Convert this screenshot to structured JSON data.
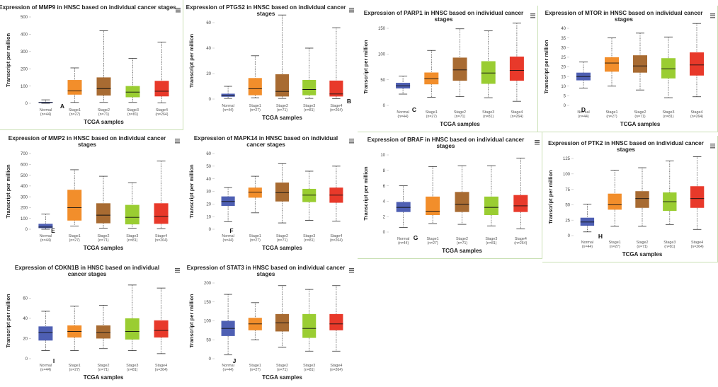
{
  "common": {
    "xlabel": "TCGA samples",
    "ylabel": "Transcript per million",
    "categories": [
      "Normal",
      "Stage1",
      "Stage2",
      "Stage3",
      "Stage4"
    ],
    "counts": [
      "(n=44)",
      "(n=27)",
      "(n=71)",
      "(n=81)",
      "(n=264)"
    ]
  },
  "colors": [
    "#4e5fb3",
    "#f28e2b",
    "#a86b32",
    "#9acd32",
    "#e8392a"
  ],
  "chart_data": [
    {
      "type": "box",
      "letter": "A",
      "title": [
        "Expression of MMP9 in HNSC based on individual cancer stages"
      ],
      "ylim": [
        0,
        500
      ],
      "yticks": [
        0,
        100,
        200,
        300,
        400,
        500
      ],
      "boxes": [
        {
          "min": 0,
          "q1": 2,
          "median": 5,
          "q3": 8,
          "max": 20
        },
        {
          "min": 5,
          "q1": 50,
          "median": 72,
          "q3": 135,
          "max": 205
        },
        {
          "min": 5,
          "q1": 45,
          "median": 85,
          "q3": 150,
          "max": 420
        },
        {
          "min": 5,
          "q1": 35,
          "median": 65,
          "q3": 100,
          "max": 260
        },
        {
          "min": 3,
          "q1": 40,
          "median": 70,
          "q3": 130,
          "max": 355
        }
      ]
    },
    {
      "type": "box",
      "letter": "B",
      "title": [
        "Expression of PTGS2 in HNSC based on individual cancer",
        "stages"
      ],
      "ylim": [
        0,
        60
      ],
      "yticks": [
        0,
        20,
        40,
        60
      ],
      "boxes": [
        {
          "min": 0.5,
          "q1": 1.8,
          "median": 2.8,
          "q3": 4.2,
          "max": 10
        },
        {
          "min": 1,
          "q1": 3,
          "median": 8,
          "q3": 16.5,
          "max": 34
        },
        {
          "min": 0.5,
          "q1": 2,
          "median": 6,
          "q3": 19.5,
          "max": 66
        },
        {
          "min": 0.5,
          "q1": 3,
          "median": 7.5,
          "q3": 15,
          "max": 40
        },
        {
          "min": 0.3,
          "q1": 2,
          "median": 4,
          "q3": 14.5,
          "max": 56
        }
      ]
    },
    {
      "type": "box",
      "letter": "C",
      "title": [
        "Expression of PARP1 in HNSC based on individual cancer",
        "stages"
      ],
      "ylim": [
        0,
        150
      ],
      "yticks": [
        0,
        50,
        100,
        150
      ],
      "boxes": [
        {
          "min": 22,
          "q1": 33,
          "median": 38,
          "q3": 44,
          "max": 57
        },
        {
          "min": 16,
          "q1": 41,
          "median": 52,
          "q3": 64,
          "max": 107
        },
        {
          "min": 17,
          "q1": 48,
          "median": 69,
          "q3": 93,
          "max": 149
        },
        {
          "min": 15,
          "q1": 42,
          "median": 63,
          "q3": 86,
          "max": 145
        },
        {
          "min": 8,
          "q1": 48,
          "median": 68,
          "q3": 95,
          "max": 160
        }
      ]
    },
    {
      "type": "box",
      "letter": "D",
      "title": [
        "Expression of MTOR in HNSC based on individual cancer",
        "stages"
      ],
      "ylim": [
        0,
        40
      ],
      "yticks": [
        0,
        5,
        10,
        15,
        20,
        25,
        30,
        35,
        40
      ],
      "boxes": [
        {
          "min": 9,
          "q1": 13,
          "median": 15,
          "q3": 17,
          "max": 22.5
        },
        {
          "min": 10,
          "q1": 17.5,
          "median": 22,
          "q3": 25,
          "max": 35
        },
        {
          "min": 8,
          "q1": 17,
          "median": 20.5,
          "q3": 26,
          "max": 37.5
        },
        {
          "min": 4,
          "q1": 14,
          "median": 19,
          "q3": 24.5,
          "max": 35.5
        },
        {
          "min": 4.5,
          "q1": 15.5,
          "median": 21,
          "q3": 27.5,
          "max": 42.5
        }
      ]
    },
    {
      "type": "box",
      "letter": "E",
      "title": [
        "Expression of MMP2 in HNSC based on individual cancer",
        "stages"
      ],
      "ylim": [
        0,
        700
      ],
      "yticks": [
        0,
        100,
        200,
        300,
        400,
        500,
        600,
        700
      ],
      "boxes": [
        {
          "min": 0,
          "q1": 10,
          "median": 20,
          "q3": 50,
          "max": 140
        },
        {
          "min": 30,
          "q1": 80,
          "median": 200,
          "q3": 365,
          "max": 550
        },
        {
          "min": 10,
          "q1": 55,
          "median": 130,
          "q3": 240,
          "max": 490
        },
        {
          "min": 10,
          "q1": 45,
          "median": 110,
          "q3": 225,
          "max": 430
        },
        {
          "min": 5,
          "q1": 50,
          "median": 120,
          "q3": 240,
          "max": 630
        }
      ]
    },
    {
      "type": "box",
      "letter": "F",
      "title": [
        "Expression of MAPK14 in HNSC based on individual",
        "cancer stages"
      ],
      "ylim": [
        0,
        60
      ],
      "yticks": [
        0,
        10,
        20,
        30,
        40,
        50,
        60
      ],
      "boxes": [
        {
          "min": 6,
          "q1": 18.5,
          "median": 22,
          "q3": 26,
          "max": 33
        },
        {
          "min": 13,
          "q1": 25,
          "median": 29.5,
          "q3": 33,
          "max": 42
        },
        {
          "min": 5,
          "q1": 22,
          "median": 29,
          "q3": 37,
          "max": 52
        },
        {
          "min": 7,
          "q1": 21.5,
          "median": 27,
          "q3": 32,
          "max": 46
        },
        {
          "min": 6.5,
          "q1": 21,
          "median": 27,
          "q3": 33,
          "max": 50
        }
      ]
    },
    {
      "type": "box",
      "letter": "G",
      "title": [
        "Expression of BRAF in HNSC based on individual cancer",
        "stages"
      ],
      "ylim": [
        0,
        10
      ],
      "yticks": [
        0,
        2,
        4,
        6,
        8,
        10
      ],
      "boxes": [
        {
          "min": 0.6,
          "q1": 2.6,
          "median": 3.2,
          "q3": 3.9,
          "max": 6
        },
        {
          "min": 1.1,
          "q1": 2.2,
          "median": 2.7,
          "q3": 4.6,
          "max": 8.5
        },
        {
          "min": 1,
          "q1": 2.6,
          "median": 3.6,
          "q3": 5.2,
          "max": 8.6
        },
        {
          "min": 0.8,
          "q1": 2.2,
          "median": 3.2,
          "q3": 4.6,
          "max": 8.6
        },
        {
          "min": 0.4,
          "q1": 2.6,
          "median": 3.4,
          "q3": 4.8,
          "max": 9.6
        }
      ]
    },
    {
      "type": "box",
      "letter": "H",
      "title": [
        "Expression of PTK2 in HNSC based on individual cancer",
        "stages"
      ],
      "ylim": [
        0,
        125
      ],
      "yticks": [
        0,
        25,
        50,
        75,
        100,
        125
      ],
      "boxes": [
        {
          "min": 6,
          "q1": 16,
          "median": 22,
          "q3": 29,
          "max": 51
        },
        {
          "min": 15,
          "q1": 42,
          "median": 50,
          "q3": 68,
          "max": 106
        },
        {
          "min": 15,
          "q1": 45,
          "median": 60,
          "q3": 72,
          "max": 110
        },
        {
          "min": 18,
          "q1": 40,
          "median": 55,
          "q3": 70,
          "max": 121
        },
        {
          "min": 10,
          "q1": 45,
          "median": 60,
          "q3": 80,
          "max": 128
        }
      ]
    },
    {
      "type": "box",
      "letter": "I",
      "title": [
        "Expression of CDKN1B in HNSC based on individual",
        "cancer stages"
      ],
      "ylim": [
        0,
        75
      ],
      "yticks": [
        0,
        20,
        40,
        60
      ],
      "boxes": [
        {
          "min": 8,
          "q1": 18,
          "median": 26,
          "q3": 32,
          "max": 47
        },
        {
          "min": 8,
          "q1": 21,
          "median": 27,
          "q3": 33,
          "max": 52
        },
        {
          "min": 10,
          "q1": 20,
          "median": 26,
          "q3": 33,
          "max": 53
        },
        {
          "min": 8,
          "q1": 19,
          "median": 27,
          "q3": 40,
          "max": 73
        },
        {
          "min": 5,
          "q1": 21,
          "median": 28,
          "q3": 38,
          "max": 70
        }
      ]
    },
    {
      "type": "box",
      "letter": "J",
      "title": [
        "Expression of STAT3 in HNSC based on individual cancer",
        "stages"
      ],
      "ylim": [
        0,
        200
      ],
      "yticks": [
        0,
        50,
        100,
        150,
        200
      ],
      "boxes": [
        {
          "min": 10,
          "q1": 60,
          "median": 80,
          "q3": 100,
          "max": 170
        },
        {
          "min": 50,
          "q1": 75,
          "median": 92,
          "q3": 108,
          "max": 148
        },
        {
          "min": 30,
          "q1": 72,
          "median": 95,
          "q3": 118,
          "max": 193
        },
        {
          "min": 20,
          "q1": 55,
          "median": 80,
          "q3": 118,
          "max": 183
        },
        {
          "min": 20,
          "q1": 75,
          "median": 92,
          "q3": 118,
          "max": 193
        }
      ]
    }
  ]
}
